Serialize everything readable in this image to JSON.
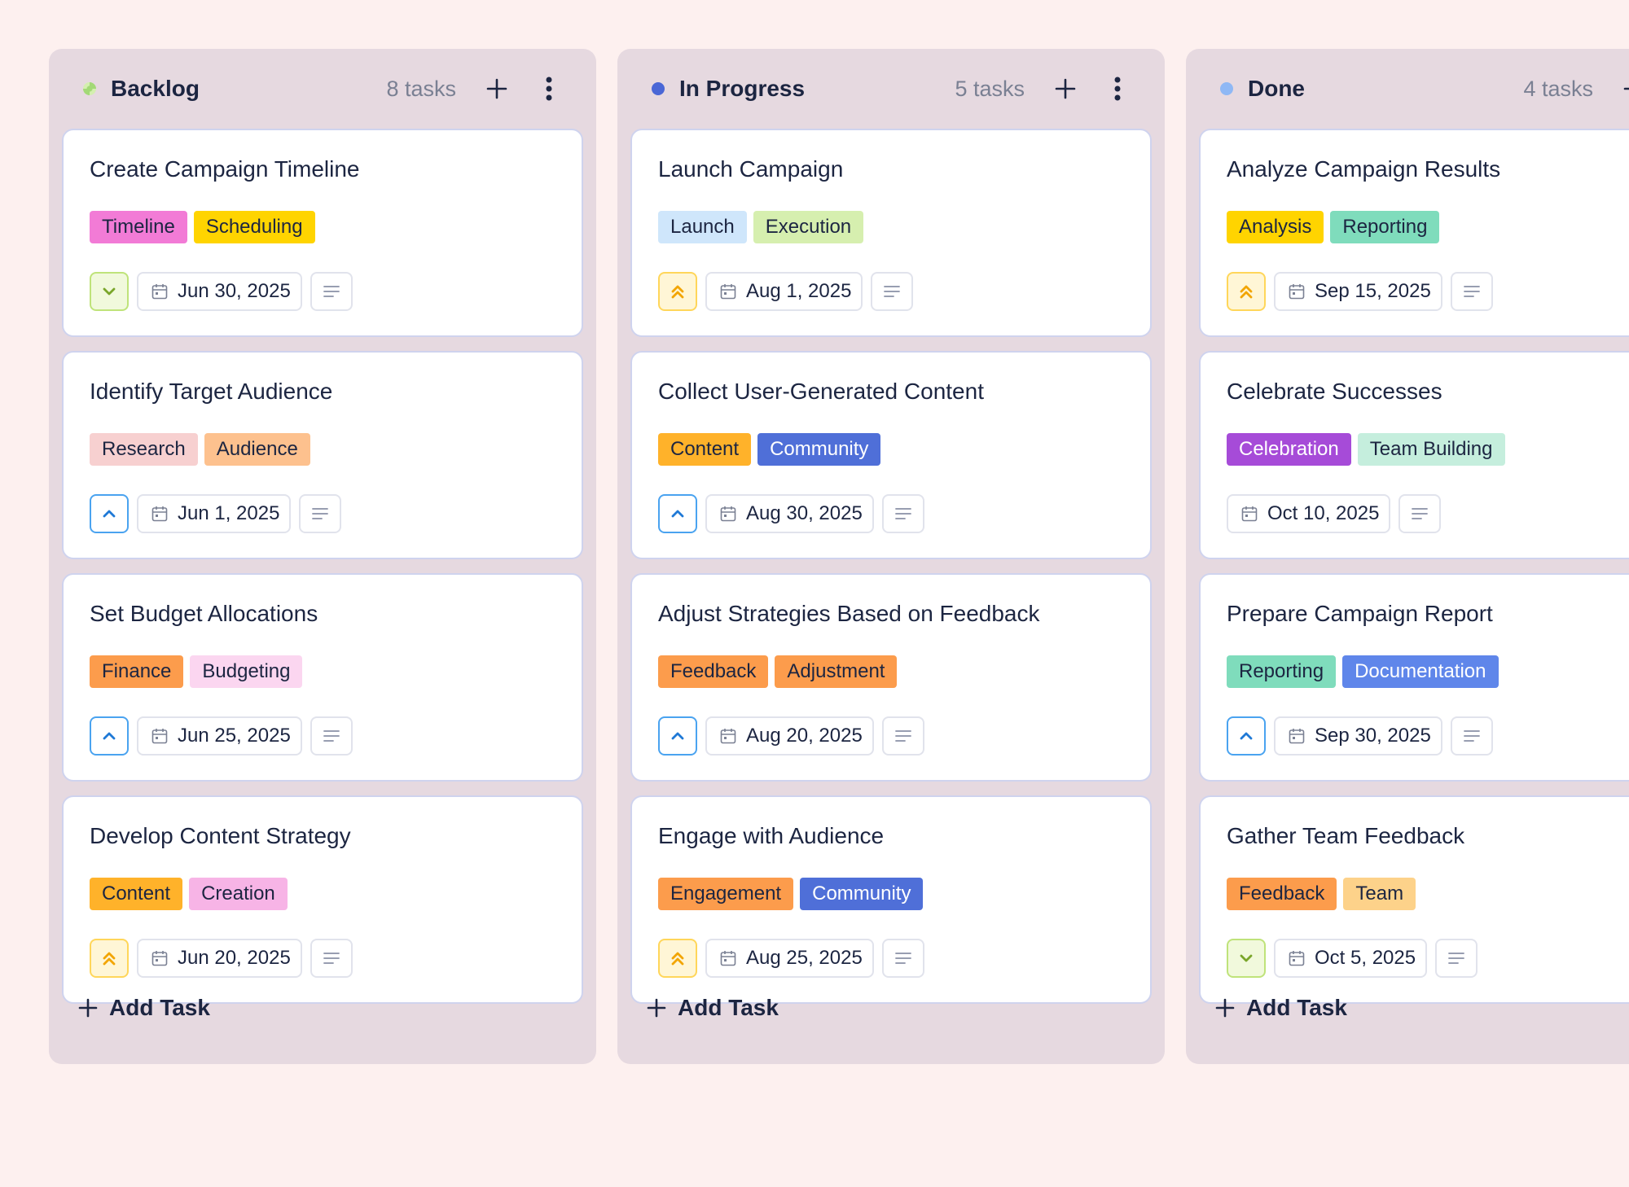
{
  "colors": {
    "page_bg": "#fdf0ef",
    "column_bg": "#e6d9e0",
    "card_border": "#cfd3ee",
    "text": "#1c2541",
    "muted": "#7a8093"
  },
  "add_task_label": "Add Task",
  "columns": [
    {
      "title": "Backlog",
      "count": "8 tasks",
      "dot_color": "#a3d977",
      "dot_style": "spinner",
      "cards": [
        {
          "title": "Create Campaign Timeline",
          "tags": [
            {
              "label": "Timeline",
              "bg": "#f27bd6",
              "fg": "#1c2541"
            },
            {
              "label": "Scheduling",
              "bg": "#ffd400",
              "fg": "#1c2541"
            }
          ],
          "priority": "low",
          "date": "Jun 30, 2025"
        },
        {
          "title": "Identify Target Audience",
          "tags": [
            {
              "label": "Research",
              "bg": "#f7d0d0",
              "fg": "#1c2541"
            },
            {
              "label": "Audience",
              "bg": "#fdc18e",
              "fg": "#1c2541"
            }
          ],
          "priority": "medium",
          "date": "Jun 1, 2025"
        },
        {
          "title": "Set Budget Allocations",
          "tags": [
            {
              "label": "Finance",
              "bg": "#fc9c4c",
              "fg": "#1c2541"
            },
            {
              "label": "Budgeting",
              "bg": "#fbd6f0",
              "fg": "#1c2541"
            }
          ],
          "priority": "medium",
          "date": "Jun 25, 2025"
        },
        {
          "title": "Develop Content Strategy",
          "tags": [
            {
              "label": "Content",
              "bg": "#ffb22a",
              "fg": "#1c2541"
            },
            {
              "label": "Creation",
              "bg": "#f7b4e6",
              "fg": "#1c2541"
            }
          ],
          "priority": "high",
          "date": "Jun 20, 2025"
        }
      ]
    },
    {
      "title": "In Progress",
      "count": "5 tasks",
      "dot_color": "#4a67d6",
      "dot_style": "solid",
      "cards": [
        {
          "title": "Launch Campaign",
          "tags": [
            {
              "label": "Launch",
              "bg": "#cfe6fb",
              "fg": "#1c2541"
            },
            {
              "label": "Execution",
              "bg": "#d6efaf",
              "fg": "#1c2541"
            }
          ],
          "priority": "high",
          "date": "Aug 1, 2025"
        },
        {
          "title": "Collect User-Generated Content",
          "tags": [
            {
              "label": "Content",
              "bg": "#ffb22a",
              "fg": "#1c2541"
            },
            {
              "label": "Community",
              "bg": "#4f6fd8",
              "fg": "#ffffff"
            }
          ],
          "priority": "medium",
          "date": "Aug 30, 2025"
        },
        {
          "title": "Adjust Strategies Based on Feedback",
          "tags": [
            {
              "label": "Feedback",
              "bg": "#fc9c4c",
              "fg": "#1c2541"
            },
            {
              "label": "Adjustment",
              "bg": "#fc9c4c",
              "fg": "#1c2541"
            }
          ],
          "priority": "medium",
          "date": "Aug 20, 2025"
        },
        {
          "title": "Engage with Audience",
          "tags": [
            {
              "label": "Engagement",
              "bg": "#fc9c4c",
              "fg": "#1c2541"
            },
            {
              "label": "Community",
              "bg": "#4f6fd8",
              "fg": "#ffffff"
            }
          ],
          "priority": "high",
          "date": "Aug 25, 2025"
        }
      ]
    },
    {
      "title": "Done",
      "count": "4 tasks",
      "dot_color": "#8fb8f5",
      "dot_style": "solid",
      "cards": [
        {
          "title": "Analyze Campaign Results",
          "tags": [
            {
              "label": "Analysis",
              "bg": "#ffd400",
              "fg": "#1c2541"
            },
            {
              "label": "Reporting",
              "bg": "#7fdcbc",
              "fg": "#1c2541"
            }
          ],
          "priority": "high",
          "date": "Sep 15, 2025"
        },
        {
          "title": "Celebrate Successes",
          "tags": [
            {
              "label": "Celebration",
              "bg": "#a64bd8",
              "fg": "#ffffff"
            },
            {
              "label": "Team Building",
              "bg": "#c5eedd",
              "fg": "#1c2541"
            }
          ],
          "priority": "none",
          "date": "Oct 10, 2025"
        },
        {
          "title": "Prepare Campaign Report",
          "tags": [
            {
              "label": "Reporting",
              "bg": "#7fdcbc",
              "fg": "#1c2541"
            },
            {
              "label": "Documentation",
              "bg": "#5f86ea",
              "fg": "#ffffff"
            }
          ],
          "priority": "medium",
          "date": "Sep 30, 2025"
        },
        {
          "title": "Gather Team Feedback",
          "tags": [
            {
              "label": "Feedback",
              "bg": "#fc9c4c",
              "fg": "#1c2541"
            },
            {
              "label": "Team",
              "bg": "#fdd28a",
              "fg": "#1c2541"
            }
          ],
          "priority": "low",
          "date": "Oct 5, 2025"
        }
      ]
    }
  ]
}
